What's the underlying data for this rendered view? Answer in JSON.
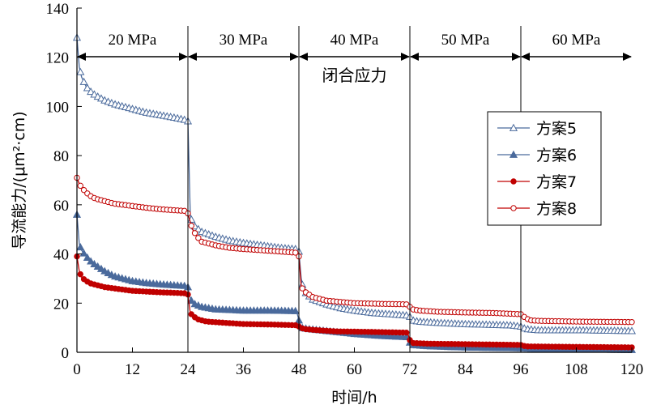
{
  "chart_data": {
    "type": "line",
    "title": "",
    "xlabel": "时间/h",
    "ylabel": "导流能力/(μm²·cm)",
    "xlim": [
      0,
      120
    ],
    "ylim": [
      0,
      140
    ],
    "xticks": [
      0,
      12,
      24,
      36,
      48,
      60,
      72,
      84,
      96,
      108,
      120
    ],
    "yticks": [
      0,
      20,
      40,
      60,
      80,
      100,
      120,
      140
    ],
    "grid": false,
    "legend_position": "right",
    "annotation": "闭合应力",
    "stages": [
      {
        "label": "20 MPa",
        "from": 0,
        "to": 24
      },
      {
        "label": "30 MPa",
        "from": 24,
        "to": 48
      },
      {
        "label": "40 MPa",
        "from": 48,
        "to": 72
      },
      {
        "label": "50 MPa",
        "from": 72,
        "to": 96
      },
      {
        "label": "60 MPa",
        "from": 96,
        "to": 120
      }
    ],
    "series": [
      {
        "name": "方案5",
        "color": "#4a6a9c",
        "marker": "triangle-open",
        "points": [
          [
            0,
            128
          ],
          [
            0.5,
            116
          ],
          [
            1,
            112
          ],
          [
            2,
            108
          ],
          [
            3,
            106
          ],
          [
            4,
            104.5
          ],
          [
            6,
            102.5
          ],
          [
            8,
            101
          ],
          [
            10,
            100
          ],
          [
            12,
            99
          ],
          [
            15,
            97.5
          ],
          [
            18,
            96.5
          ],
          [
            21,
            95.5
          ],
          [
            23.5,
            94.5
          ],
          [
            24,
            94
          ],
          [
            24.5,
            56
          ],
          [
            25,
            52
          ],
          [
            27,
            49
          ],
          [
            30,
            47
          ],
          [
            33,
            45.5
          ],
          [
            36,
            44.5
          ],
          [
            40,
            43.5
          ],
          [
            44,
            42.5
          ],
          [
            47.5,
            42
          ],
          [
            48,
            41
          ],
          [
            48.5,
            30
          ],
          [
            49,
            25
          ],
          [
            51,
            21.5
          ],
          [
            54,
            19.5
          ],
          [
            57,
            18
          ],
          [
            60,
            17
          ],
          [
            64,
            16
          ],
          [
            68,
            15.5
          ],
          [
            71.5,
            15
          ],
          [
            72,
            14.5
          ],
          [
            72.5,
            13
          ],
          [
            74,
            12.5
          ],
          [
            78,
            12
          ],
          [
            84,
            11.5
          ],
          [
            90,
            11.2
          ],
          [
            94,
            11
          ],
          [
            96,
            10.5
          ],
          [
            97,
            9.5
          ],
          [
            100,
            9
          ],
          [
            110,
            9
          ],
          [
            120,
            8.7
          ]
        ]
      },
      {
        "name": "方案6",
        "color": "#4a6a9c",
        "marker": "triangle-filled",
        "points": [
          [
            0,
            56
          ],
          [
            0.5,
            44
          ],
          [
            1,
            41.5
          ],
          [
            2,
            39
          ],
          [
            3,
            37
          ],
          [
            4,
            35.5
          ],
          [
            6,
            33
          ],
          [
            8,
            31
          ],
          [
            10,
            30
          ],
          [
            12,
            29
          ],
          [
            15,
            28.2
          ],
          [
            18,
            27.7
          ],
          [
            21,
            27.3
          ],
          [
            23.5,
            27
          ],
          [
            24,
            26.5
          ],
          [
            24.5,
            22
          ],
          [
            25,
            20
          ],
          [
            27,
            18.5
          ],
          [
            30,
            17.5
          ],
          [
            36,
            17
          ],
          [
            42,
            17
          ],
          [
            47.5,
            16.8
          ],
          [
            48,
            13
          ],
          [
            48.5,
            10
          ],
          [
            50,
            9.5
          ],
          [
            55,
            8.5
          ],
          [
            60,
            7.5
          ],
          [
            65,
            6.8
          ],
          [
            71.5,
            6.2
          ],
          [
            72,
            4
          ],
          [
            72.5,
            3
          ],
          [
            76,
            2.5
          ],
          [
            84,
            2
          ],
          [
            96,
            1.7
          ],
          [
            100,
            1.3
          ],
          [
            108,
            1.2
          ],
          [
            120,
            1
          ]
        ]
      },
      {
        "name": "方案7",
        "color": "#c00000",
        "marker": "circle-filled",
        "points": [
          [
            0,
            39
          ],
          [
            0.5,
            33
          ],
          [
            1,
            30.5
          ],
          [
            2,
            29
          ],
          [
            3,
            28
          ],
          [
            4,
            27.5
          ],
          [
            6,
            26.5
          ],
          [
            8,
            26
          ],
          [
            10,
            25.5
          ],
          [
            12,
            25
          ],
          [
            15,
            24.7
          ],
          [
            18,
            24.4
          ],
          [
            21,
            24.2
          ],
          [
            23.5,
            24
          ],
          [
            24,
            23.5
          ],
          [
            24.5,
            16
          ],
          [
            25,
            15
          ],
          [
            26,
            13.5
          ],
          [
            28,
            12.5
          ],
          [
            32,
            12
          ],
          [
            36,
            11.5
          ],
          [
            42,
            11.3
          ],
          [
            47.5,
            11
          ],
          [
            48,
            10.5
          ],
          [
            49,
            9.5
          ],
          [
            52,
            9
          ],
          [
            56,
            8.5
          ],
          [
            60,
            8.4
          ],
          [
            66,
            8.2
          ],
          [
            71.5,
            8
          ],
          [
            72,
            5
          ],
          [
            72.5,
            3.8
          ],
          [
            76,
            3.5
          ],
          [
            84,
            3.3
          ],
          [
            96,
            3
          ],
          [
            97,
            2.4
          ],
          [
            108,
            2.2
          ],
          [
            120,
            2
          ]
        ]
      },
      {
        "name": "方案8",
        "color": "#c00000",
        "marker": "circle-open",
        "points": [
          [
            0,
            71
          ],
          [
            0.5,
            68.5
          ],
          [
            1,
            67
          ],
          [
            2,
            65
          ],
          [
            3,
            63.5
          ],
          [
            4,
            62.5
          ],
          [
            6,
            61.5
          ],
          [
            8,
            60.5
          ],
          [
            10,
            60
          ],
          [
            12,
            59.5
          ],
          [
            15,
            58.8
          ],
          [
            18,
            58.2
          ],
          [
            21,
            57.8
          ],
          [
            23.5,
            57.5
          ],
          [
            24,
            56.5
          ],
          [
            24.5,
            53
          ],
          [
            25,
            50
          ],
          [
            26,
            47
          ],
          [
            27,
            45
          ],
          [
            30,
            43.5
          ],
          [
            33,
            42.5
          ],
          [
            36,
            42
          ],
          [
            40,
            41.5
          ],
          [
            44,
            41
          ],
          [
            47.5,
            40.5
          ],
          [
            48,
            39
          ],
          [
            48.5,
            27
          ],
          [
            49,
            25
          ],
          [
            51,
            22.5
          ],
          [
            54,
            21
          ],
          [
            57,
            20.5
          ],
          [
            60,
            20
          ],
          [
            66,
            19.7
          ],
          [
            71.5,
            19.5
          ],
          [
            72,
            18.5
          ],
          [
            72.5,
            17.5
          ],
          [
            74,
            17
          ],
          [
            78,
            16.5
          ],
          [
            84,
            16.2
          ],
          [
            90,
            16
          ],
          [
            96,
            15.5
          ],
          [
            97,
            14
          ],
          [
            98,
            13
          ],
          [
            100,
            12.8
          ],
          [
            108,
            12.5
          ],
          [
            120,
            12.3
          ]
        ]
      }
    ]
  }
}
